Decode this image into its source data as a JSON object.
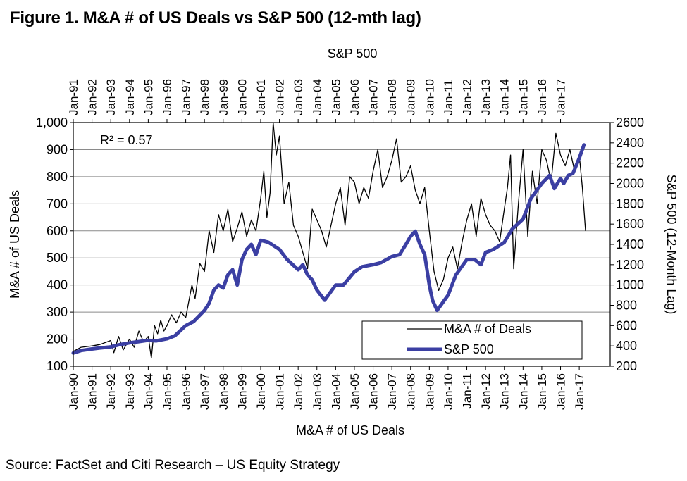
{
  "figure_title": "Figure 1. M&A # of US Deals vs S&P 500 (12-mth lag)",
  "source": "Source: FactSet and Citi Research – US Equity Strategy",
  "chart_data": {
    "type": "line",
    "title": "",
    "top_axis_title": "S&P 500",
    "xlabel": "M&A # of US Deals",
    "ylabel_left": "M&A # of US Deals",
    "ylabel_right": "S&P 500 (12-Month Lag)",
    "annotation": "R² = 0.57",
    "ylim_left": [
      100,
      1000
    ],
    "yticks_left": [
      "100",
      "200",
      "300",
      "400",
      "500",
      "600",
      "700",
      "800",
      "900",
      "1,000"
    ],
    "ylim_right": [
      200,
      2600
    ],
    "yticks_right": [
      "200",
      "400",
      "600",
      "800",
      "1000",
      "1200",
      "1400",
      "1600",
      "1800",
      "2000",
      "2200",
      "2400",
      "2600"
    ],
    "bottom_ticks": [
      "Jan-90",
      "Jan-91",
      "Jan-92",
      "Jan-93",
      "Jan-94",
      "Jan-95",
      "Jan-96",
      "Jan-97",
      "Jan-98",
      "Jan-99",
      "Jan-00",
      "Jan-01",
      "Jan-02",
      "Jan-03",
      "Jan-04",
      "Jan-05",
      "Jan-06",
      "Jan-07",
      "Jan-08",
      "Jan-09",
      "Jan-10",
      "Jan-11",
      "Jan-12",
      "Jan-13",
      "Jan-14",
      "Jan-15",
      "Jan-16",
      "Jan-17"
    ],
    "top_ticks": [
      "Jan-91",
      "Jan-92",
      "Jan-93",
      "Jan-94",
      "Jan-95",
      "Jan-96",
      "Jan-97",
      "Jan-98",
      "Jan-99",
      "Jan-00",
      "Jan-01",
      "Jan-02",
      "Jan-03",
      "Jan-04",
      "Jan-05",
      "Jan-06",
      "Jan-07",
      "Jan-08",
      "Jan-09",
      "Jan-10",
      "Jan-11",
      "Jan-12",
      "Jan-13",
      "Jan-14",
      "Jan-15",
      "Jan-16",
      "Jan-17"
    ],
    "grid": "horizontal",
    "legend_position": "bottom-right",
    "series": [
      {
        "name": "M&A # of Deals",
        "axis": "left",
        "color": "#000000",
        "x": [
          "1990-01",
          "1990-06",
          "1991-01",
          "1991-06",
          "1992-01",
          "1992-03",
          "1992-06",
          "1992-09",
          "1993-01",
          "1993-04",
          "1993-07",
          "1993-10",
          "1994-01",
          "1994-03",
          "1994-05",
          "1994-07",
          "1994-09",
          "1994-11",
          "1995-01",
          "1995-04",
          "1995-07",
          "1995-10",
          "1996-01",
          "1996-03",
          "1996-05",
          "1996-07",
          "1996-10",
          "1997-01",
          "1997-04",
          "1997-07",
          "1997-10",
          "1998-01",
          "1998-04",
          "1998-07",
          "1998-10",
          "1999-01",
          "1999-04",
          "1999-07",
          "1999-10",
          "2000-01",
          "2000-03",
          "2000-05",
          "2000-07",
          "2000-09",
          "2000-11",
          "2001-01",
          "2001-04",
          "2001-07",
          "2001-10",
          "2002-01",
          "2002-04",
          "2002-07",
          "2002-10",
          "2003-01",
          "2003-04",
          "2003-07",
          "2003-10",
          "2004-01",
          "2004-04",
          "2004-07",
          "2004-10",
          "2005-01",
          "2005-04",
          "2005-07",
          "2005-10",
          "2006-01",
          "2006-04",
          "2006-07",
          "2006-10",
          "2007-01",
          "2007-04",
          "2007-07",
          "2007-10",
          "2008-01",
          "2008-04",
          "2008-07",
          "2008-10",
          "2009-01",
          "2009-04",
          "2009-07",
          "2009-10",
          "2010-01",
          "2010-04",
          "2010-07",
          "2010-10",
          "2011-01",
          "2011-04",
          "2011-07",
          "2011-10",
          "2012-01",
          "2012-04",
          "2012-07",
          "2012-10",
          "2013-01",
          "2013-03",
          "2013-05",
          "2013-07",
          "2013-10",
          "2014-01",
          "2014-04",
          "2014-07",
          "2014-10",
          "2015-01",
          "2015-04",
          "2015-07",
          "2015-10",
          "2016-01",
          "2016-04",
          "2016-07",
          "2016-10",
          "2017-01",
          "2017-03",
          "2017-05"
        ],
        "values": [
          155,
          170,
          175,
          180,
          195,
          150,
          210,
          160,
          200,
          170,
          230,
          190,
          210,
          130,
          250,
          220,
          270,
          230,
          250,
          290,
          260,
          300,
          280,
          340,
          400,
          350,
          480,
          450,
          600,
          520,
          660,
          600,
          680,
          560,
          610,
          670,
          580,
          640,
          600,
          720,
          820,
          650,
          740,
          1000,
          880,
          950,
          700,
          780,
          620,
          580,
          520,
          460,
          680,
          640,
          600,
          540,
          620,
          700,
          760,
          620,
          800,
          780,
          700,
          760,
          720,
          820,
          900,
          760,
          800,
          860,
          940,
          780,
          800,
          840,
          750,
          700,
          760,
          600,
          450,
          380,
          420,
          500,
          540,
          460,
          560,
          640,
          700,
          580,
          720,
          660,
          620,
          600,
          560,
          680,
          760,
          880,
          460,
          700,
          900,
          580,
          820,
          700,
          900,
          860,
          780,
          960,
          880,
          840,
          900,
          820,
          880,
          760,
          600
        ]
      },
      {
        "name": "S&P 500",
        "axis": "right",
        "color": "#3b3fa3",
        "x": [
          "1990-01",
          "1990-06",
          "1991-01",
          "1991-06",
          "1992-01",
          "1992-06",
          "1993-01",
          "1993-06",
          "1994-01",
          "1994-06",
          "1995-01",
          "1995-06",
          "1996-01",
          "1996-06",
          "1997-01",
          "1997-04",
          "1997-07",
          "1997-10",
          "1998-01",
          "1998-04",
          "1998-07",
          "1998-10",
          "1999-01",
          "1999-04",
          "1999-07",
          "1999-10",
          "2000-01",
          "2000-06",
          "2001-01",
          "2001-06",
          "2002-01",
          "2002-04",
          "2002-07",
          "2002-10",
          "2003-01",
          "2003-06",
          "2004-01",
          "2004-06",
          "2005-01",
          "2005-06",
          "2006-01",
          "2006-06",
          "2007-01",
          "2007-06",
          "2007-10",
          "2008-01",
          "2008-04",
          "2008-07",
          "2008-10",
          "2009-01",
          "2009-03",
          "2009-06",
          "2010-01",
          "2010-06",
          "2011-01",
          "2011-06",
          "2011-10",
          "2012-01",
          "2012-06",
          "2013-01",
          "2013-06",
          "2014-01",
          "2014-06",
          "2015-01",
          "2015-06",
          "2015-09",
          "2016-01",
          "2016-03",
          "2016-06",
          "2016-09",
          "2017-01",
          "2017-04"
        ],
        "values": [
          330,
          355,
          370,
          380,
          390,
          410,
          430,
          440,
          455,
          450,
          470,
          500,
          600,
          640,
          750,
          820,
          950,
          1000,
          970,
          1100,
          1150,
          1000,
          1250,
          1350,
          1400,
          1300,
          1440,
          1420,
          1350,
          1250,
          1150,
          1200,
          1100,
          1050,
          950,
          850,
          1000,
          1000,
          1130,
          1180,
          1200,
          1220,
          1280,
          1300,
          1400,
          1480,
          1530,
          1400,
          1300,
          1000,
          850,
          750,
          900,
          1100,
          1250,
          1250,
          1200,
          1320,
          1350,
          1420,
          1550,
          1650,
          1850,
          2000,
          2080,
          1950,
          2050,
          2000,
          2080,
          2100,
          2250,
          2380
        ]
      }
    ]
  }
}
